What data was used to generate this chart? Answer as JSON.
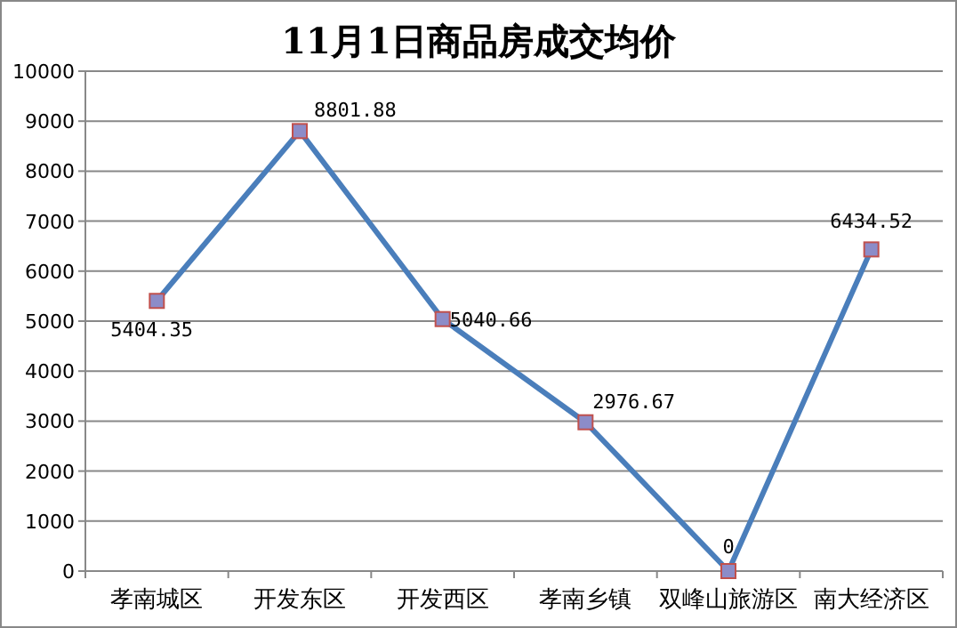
{
  "chart_data": {
    "type": "line",
    "title": "11月1日商品房成交均价",
    "categories": [
      "孝南城区",
      "开发东区",
      "开发西区",
      "孝南乡镇",
      "双峰山旅游区",
      "南大经济区"
    ],
    "series": [
      {
        "color": "#4a7ebb",
        "values": [
          5404.35,
          8801.88,
          5040.66,
          2976.67,
          0,
          6434.52
        ]
      }
    ],
    "ylim": [
      0,
      10000
    ],
    "yticks": [
      0,
      1000,
      2000,
      3000,
      4000,
      5000,
      6000,
      7000,
      8000,
      9000,
      10000
    ],
    "grid": "y",
    "marker": "square",
    "line_style": "solid",
    "data_labels": true
  }
}
